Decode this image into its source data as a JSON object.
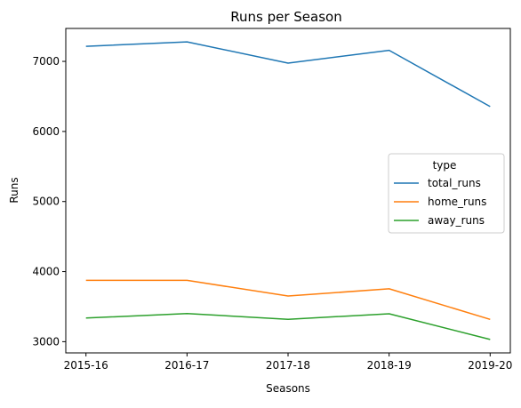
{
  "chart_data": {
    "type": "line",
    "title": "Runs per Season",
    "xlabel": "Seasons",
    "ylabel": "Runs",
    "categories": [
      "2015-16",
      "2016-17",
      "2017-18",
      "2018-19",
      "2019-20"
    ],
    "y_ticks": [
      3000,
      4000,
      5000,
      6000,
      7000
    ],
    "ylim": [
      2840,
      7470
    ],
    "grid": false,
    "legend": {
      "title": "type",
      "placement": "center-right"
    },
    "series": [
      {
        "name": "total_runs",
        "color": "#1f77b4",
        "values": [
          7215,
          7278,
          6975,
          7158,
          6355
        ]
      },
      {
        "name": "home_runs",
        "color": "#ff7f0e",
        "values": [
          3875,
          3875,
          3652,
          3755,
          3318
        ]
      },
      {
        "name": "away_runs",
        "color": "#2ca02c",
        "values": [
          3337,
          3402,
          3320,
          3398,
          3032
        ]
      }
    ]
  }
}
